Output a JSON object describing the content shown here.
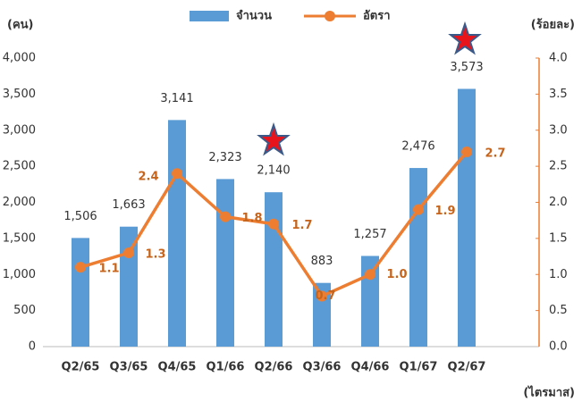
{
  "chart_data": {
    "type": "bar-line",
    "y_label": "(คน)",
    "y2_label": "(ร้อยละ)",
    "x_label": "(ไตรมาส)",
    "categories": [
      "Q2/65",
      "Q3/65",
      "Q4/65",
      "Q1/66",
      "Q2/66",
      "Q3/66",
      "Q4/66",
      "Q1/67",
      "Q2/67"
    ],
    "series": [
      {
        "name": "จำนวน",
        "type": "bar",
        "color": "#5b9bd5",
        "values": [
          1506,
          1663,
          3141,
          2323,
          2140,
          883,
          1257,
          2476,
          3573
        ],
        "value_labels": [
          "1,506",
          "1,663",
          "3,141",
          "2,323",
          "2,140",
          "883",
          "1,257",
          "2,476",
          "3,573"
        ]
      },
      {
        "name": "อัตรา",
        "type": "line",
        "axis": "y2",
        "color": "#ed7d31",
        "values": [
          1.1,
          1.3,
          2.4,
          1.8,
          1.7,
          0.7,
          1.0,
          1.9,
          2.7
        ],
        "value_labels": [
          "1.1",
          "1.3",
          "2.4",
          "1.8",
          "1.7",
          "0.7",
          "1.0",
          "1.9",
          "2.7"
        ]
      }
    ],
    "ylim": [
      0,
      4000
    ],
    "yticks": [
      0,
      500,
      {
        "value": 1000,
        "label": "1,000"
      },
      {
        "value": 1500,
        "label": "1,500"
      },
      {
        "value": 2000,
        "label": "2,000"
      },
      {
        "value": 2500,
        "label": "2,500"
      },
      {
        "value": 3000,
        "label": "3,000"
      },
      {
        "value": 3500,
        "label": "3,500"
      },
      {
        "value": 4000,
        "label": "4,000"
      }
    ],
    "y2lim": [
      0,
      4
    ],
    "y2ticks": [
      {
        "value": 0,
        "label": "0.0"
      },
      0.5,
      {
        "value": 1,
        "label": "1.0"
      },
      1.5,
      {
        "value": 2,
        "label": "2.0"
      },
      2.5,
      {
        "value": 3,
        "label": "3.0"
      },
      3.5,
      {
        "value": 4,
        "label": "4.0"
      }
    ],
    "grid": false
  }
}
